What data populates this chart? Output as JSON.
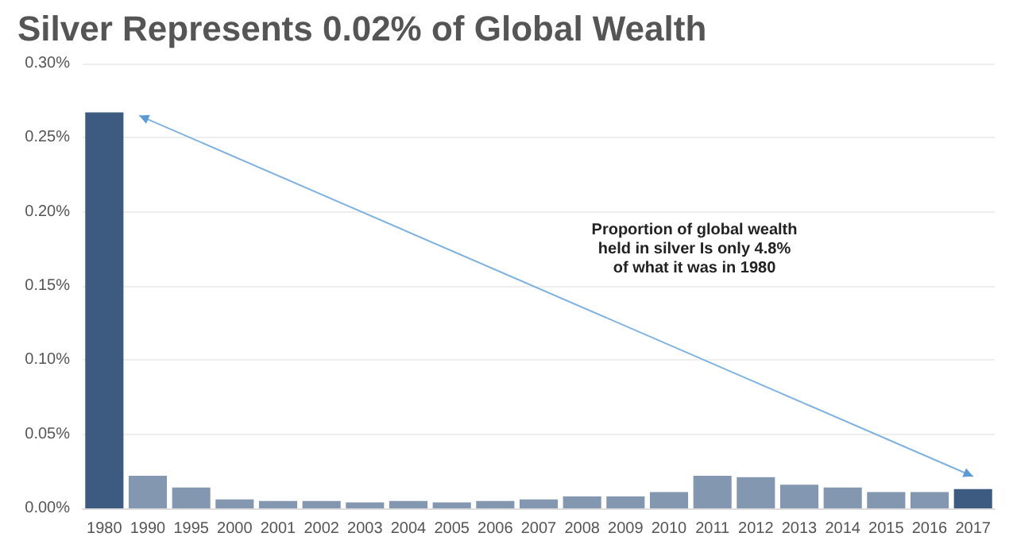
{
  "chart_data": {
    "type": "bar",
    "title": "Silver Represents 0.02% of Global Wealth",
    "categories": [
      "1980",
      "1990",
      "1995",
      "2000",
      "2001",
      "2002",
      "2003",
      "2004",
      "2005",
      "2006",
      "2007",
      "2008",
      "2009",
      "2010",
      "2011",
      "2012",
      "2013",
      "2014",
      "2015",
      "2016",
      "2017"
    ],
    "values": [
      0.267,
      0.022,
      0.014,
      0.006,
      0.005,
      0.005,
      0.004,
      0.005,
      0.004,
      0.005,
      0.006,
      0.008,
      0.008,
      0.011,
      0.022,
      0.021,
      0.016,
      0.014,
      0.011,
      0.011,
      0.013
    ],
    "colors": [
      "#3d5a80",
      "#8497b0",
      "#8497b0",
      "#8497b0",
      "#8497b0",
      "#8497b0",
      "#8497b0",
      "#8497b0",
      "#8497b0",
      "#8497b0",
      "#8497b0",
      "#8497b0",
      "#8497b0",
      "#8497b0",
      "#8497b0",
      "#8497b0",
      "#8497b0",
      "#8497b0",
      "#8497b0",
      "#8497b0",
      "#3d5a80"
    ],
    "ylim": [
      0,
      0.3
    ],
    "yticks": [
      {
        "value": 0,
        "label": "0.00%"
      },
      {
        "value": 0.05,
        "label": "0.05%"
      },
      {
        "value": 0.1,
        "label": "0.10%"
      },
      {
        "value": 0.15,
        "label": "0.15%"
      },
      {
        "value": 0.2,
        "label": "0.20%"
      },
      {
        "value": 0.25,
        "label": "0.25%"
      },
      {
        "value": 0.3,
        "label": "0.30%"
      }
    ],
    "grid": "y",
    "annotations": [
      "Proportion of global wealth\nheld in silver Is only 4.8%\nof what it was in 1980"
    ]
  }
}
